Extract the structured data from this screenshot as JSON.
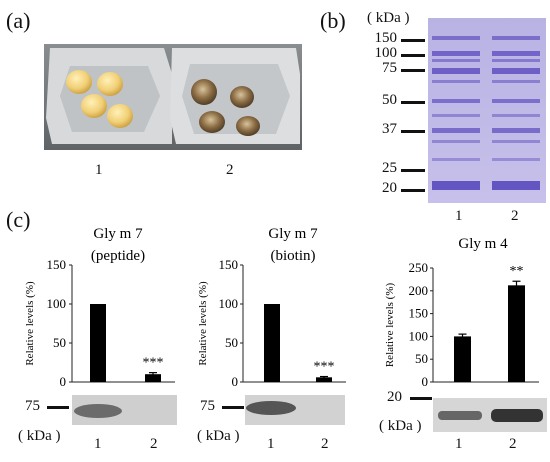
{
  "panel_labels": [
    "(a)",
    "(b)",
    "(c)"
  ],
  "panel_a": {
    "lanes": [
      "1",
      "2"
    ]
  },
  "panel_b": {
    "unit_label": "( kDa )",
    "markers": [
      "150",
      "100",
      "75",
      "50",
      "37",
      "25",
      "20"
    ],
    "lanes": [
      "1",
      "2"
    ]
  },
  "panel_c": {
    "blots": [
      {
        "marker": "75",
        "unit": "( kDa )",
        "lanes": [
          "1",
          "2"
        ]
      },
      {
        "marker": "75",
        "unit": "( kDa )",
        "lanes": [
          "1",
          "2"
        ]
      },
      {
        "marker": "20",
        "unit": "( kDa )",
        "lanes": [
          "1",
          "2"
        ]
      }
    ]
  },
  "chart_data": [
    {
      "type": "bar",
      "title": "Gly m 7 (peptide)",
      "title_lines": [
        "Gly m 7",
        "(peptide)"
      ],
      "ylabel": "Relative levels (%)",
      "categories": [
        "1",
        "2"
      ],
      "values": [
        100,
        10
      ],
      "errors": [
        0,
        2
      ],
      "annotations": [
        "",
        "***"
      ],
      "ylim": [
        0,
        150
      ],
      "yticks": [
        "150",
        "100",
        "50",
        "0"
      ]
    },
    {
      "type": "bar",
      "title": "Gly m 7 (biotin)",
      "title_lines": [
        "Gly m 7",
        "(biotin)"
      ],
      "ylabel": "Relative levels (%)",
      "categories": [
        "1",
        "2"
      ],
      "values": [
        100,
        6
      ],
      "errors": [
        0,
        1
      ],
      "annotations": [
        "",
        "***"
      ],
      "ylim": [
        0,
        150
      ],
      "yticks": [
        "150",
        "100",
        "50",
        "0"
      ]
    },
    {
      "type": "bar",
      "title": "Gly m 4",
      "title_lines": [
        "Gly m 4"
      ],
      "ylabel": "Relative levels (%)",
      "categories": [
        "1",
        "2"
      ],
      "values": [
        100,
        212
      ],
      "errors": [
        5,
        9
      ],
      "annotations": [
        "",
        "**"
      ],
      "ylim": [
        0,
        250
      ],
      "yticks": [
        "250",
        "200",
        "150",
        "100",
        "50",
        "0"
      ]
    }
  ]
}
